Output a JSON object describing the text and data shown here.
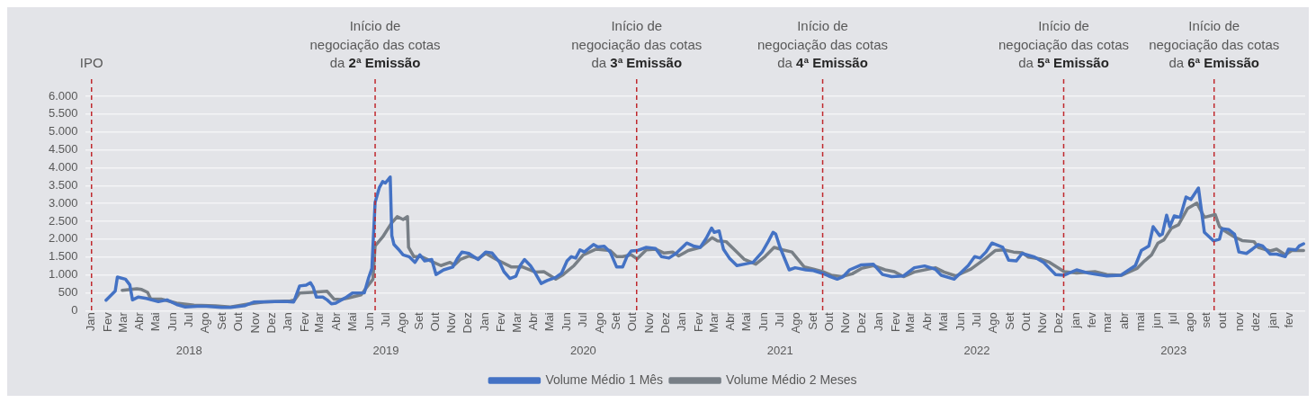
{
  "chart_data": {
    "type": "line",
    "legend": "bottom",
    "grid": "y",
    "xlim": [
      "2017-12-20",
      "2024-03-01"
    ],
    "ylim": [
      0,
      6000
    ],
    "yticks": [
      0,
      500,
      {
        "value": 1000,
        "label": "1.000"
      },
      {
        "value": 1500,
        "label": "1.500"
      },
      {
        "value": 2000,
        "label": "2.000"
      },
      {
        "value": 2500,
        "label": "2.500"
      },
      {
        "value": 3000,
        "label": "3.000"
      },
      {
        "value": 3500,
        "label": "3.500"
      },
      {
        "value": 4000,
        "label": "4.000"
      },
      {
        "value": 4500,
        "label": "4.500"
      },
      {
        "value": 5000,
        "label": "5.000"
      },
      {
        "value": 5500,
        "label": "5.500"
      },
      {
        "value": 6000,
        "label": "6.000"
      }
    ],
    "xticks": [
      {
        "value": "2018-01-01",
        "label": "Jan"
      },
      {
        "value": "2018-02-01",
        "label": "Fev"
      },
      {
        "value": "2018-03-01",
        "label": "Mar"
      },
      {
        "value": "2018-04-01",
        "label": "Abr"
      },
      {
        "value": "2018-05-01",
        "label": "Mai"
      },
      {
        "value": "2018-06-01",
        "label": "Jun"
      },
      {
        "value": "2018-07-01",
        "label": "Jul"
      },
      {
        "value": "2018-08-01",
        "label": "Ago"
      },
      {
        "value": "2018-09-01",
        "label": "Set"
      },
      {
        "value": "2018-10-01",
        "label": "Out"
      },
      {
        "value": "2018-11-01",
        "label": "Nov"
      },
      {
        "value": "2018-12-01",
        "label": "Dez"
      },
      {
        "value": "2019-01-01",
        "label": "Jan"
      },
      {
        "value": "2019-02-01",
        "label": "Fev"
      },
      {
        "value": "2019-03-01",
        "label": "Mar"
      },
      {
        "value": "2019-04-01",
        "label": "Abr"
      },
      {
        "value": "2019-05-01",
        "label": "Mai"
      },
      {
        "value": "2019-06-01",
        "label": "Jun"
      },
      {
        "value": "2019-07-01",
        "label": "Jul"
      },
      {
        "value": "2019-08-01",
        "label": "Ago"
      },
      {
        "value": "2019-09-01",
        "label": "Set"
      },
      {
        "value": "2019-10-01",
        "label": "Out"
      },
      {
        "value": "2019-11-01",
        "label": "Nov"
      },
      {
        "value": "2019-12-01",
        "label": "Dez"
      },
      {
        "value": "2020-01-01",
        "label": "Jan"
      },
      {
        "value": "2020-02-01",
        "label": "Fev"
      },
      {
        "value": "2020-03-01",
        "label": "Mar"
      },
      {
        "value": "2020-04-01",
        "label": "Abr"
      },
      {
        "value": "2020-05-01",
        "label": "Mai"
      },
      {
        "value": "2020-06-01",
        "label": "Jun"
      },
      {
        "value": "2020-07-01",
        "label": "Jul"
      },
      {
        "value": "2020-08-01",
        "label": "Ago"
      },
      {
        "value": "2020-09-01",
        "label": "Set"
      },
      {
        "value": "2020-10-01",
        "label": "Out"
      },
      {
        "value": "2020-11-01",
        "label": "Nov"
      },
      {
        "value": "2020-12-01",
        "label": "Dez"
      },
      {
        "value": "2021-01-01",
        "label": "Jan"
      },
      {
        "value": "2021-02-01",
        "label": "Fev"
      },
      {
        "value": "2021-03-01",
        "label": "Mar"
      },
      {
        "value": "2021-04-01",
        "label": "Abr"
      },
      {
        "value": "2021-05-01",
        "label": "Mai"
      },
      {
        "value": "2021-06-01",
        "label": "Jun"
      },
      {
        "value": "2021-07-01",
        "label": "Jul"
      },
      {
        "value": "2021-08-01",
        "label": "Ago"
      },
      {
        "value": "2021-09-01",
        "label": "Set"
      },
      {
        "value": "2021-10-01",
        "label": "Out"
      },
      {
        "value": "2021-11-01",
        "label": "Nov"
      },
      {
        "value": "2021-12-01",
        "label": "Dez"
      },
      {
        "value": "2022-01-01",
        "label": "Jan"
      },
      {
        "value": "2022-02-01",
        "label": "Fev"
      },
      {
        "value": "2022-03-01",
        "label": "Mar"
      },
      {
        "value": "2022-04-01",
        "label": "Abr"
      },
      {
        "value": "2022-05-01",
        "label": "Mai"
      },
      {
        "value": "2022-06-01",
        "label": "Jun"
      },
      {
        "value": "2022-07-01",
        "label": "Jul"
      },
      {
        "value": "2022-08-01",
        "label": "Ago"
      },
      {
        "value": "2022-09-01",
        "label": "Set"
      },
      {
        "value": "2022-10-01",
        "label": "Out"
      },
      {
        "value": "2022-11-01",
        "label": "Nov"
      },
      {
        "value": "2022-12-01",
        "label": "Dez"
      },
      {
        "value": "2023-01-01",
        "label": "jan"
      },
      {
        "value": "2023-02-01",
        "label": "fev"
      },
      {
        "value": "2023-03-01",
        "label": "mar"
      },
      {
        "value": "2023-04-01",
        "label": "abr"
      },
      {
        "value": "2023-05-01",
        "label": "mai"
      },
      {
        "value": "2023-06-01",
        "label": "jun"
      },
      {
        "value": "2023-07-01",
        "label": "jul"
      },
      {
        "value": "2023-08-01",
        "label": "ago"
      },
      {
        "value": "2023-09-01",
        "label": "set"
      },
      {
        "value": "2023-10-01",
        "label": "out"
      },
      {
        "value": "2023-11-01",
        "label": "nov"
      },
      {
        "value": "2023-12-01",
        "label": "dez"
      },
      {
        "value": "2024-01-01",
        "label": "jan"
      },
      {
        "value": "2024-02-01",
        "label": "fev"
      }
    ],
    "x2lim": [
      "2017-12-20",
      "2024-03-01"
    ],
    "x2ticks": [
      {
        "value": "2018-07-01",
        "label": "2018"
      },
      {
        "value": "2019-07-01",
        "label": "2019"
      },
      {
        "value": "2020-07-01",
        "label": "2020"
      },
      {
        "value": "2021-07-01",
        "label": "2021"
      },
      {
        "value": "2022-07-01",
        "label": "2022"
      },
      {
        "value": "2023-07-01",
        "label": "2023"
      }
    ],
    "ref_lines": [
      {
        "axis": "x",
        "value": "2018-01-01",
        "label": "IPO",
        "color": "#c0282d",
        "line_style": "dashed"
      },
      {
        "axis": "x",
        "value": "2019-06-11",
        "label": "Início de\nnegociação das cotas\nda 2ª Emissão",
        "color": "#c0282d",
        "line_style": "dashed"
      },
      {
        "axis": "x",
        "value": "2020-10-08",
        "label": "Início de\nnegociação das cotas\nda 3ª Emissão",
        "color": "#c0282d",
        "line_style": "dashed"
      },
      {
        "axis": "x",
        "value": "2021-09-18",
        "label": "Início de\nnegociação das cotas\nda 4ª Emissão",
        "color": "#c0282d",
        "line_style": "dashed"
      },
      {
        "axis": "x",
        "value": "2022-12-09",
        "label": "Início de\nnegociação das cotas\nda 5ª Emissão",
        "color": "#c0282d",
        "line_style": "dashed"
      },
      {
        "axis": "x",
        "value": "2023-09-14",
        "label": "Início de\nnegociação das cotas\nda 6ª Emissão",
        "color": "#c0282d",
        "line_style": "dashed"
      }
    ],
    "series": [
      {
        "name": "Volume Médio 1 Mês",
        "color": "#4472c4",
        "x": [
          "2018-01-28",
          "2018-02-14",
          "2018-02-18",
          "2018-03-05",
          "2018-03-13",
          "2018-03-18",
          "2018-03-29",
          "2018-04-13",
          "2018-05-05",
          "2018-05-21",
          "2018-06-08",
          "2018-06-24",
          "2018-07-16",
          "2018-08-02",
          "2018-08-30",
          "2018-09-16",
          "2018-10-13",
          "2018-10-30",
          "2018-12-08",
          "2018-12-30",
          "2019-01-11",
          "2019-01-22",
          "2019-02-03",
          "2019-02-11",
          "2019-02-16",
          "2019-02-22",
          "2019-03-06",
          "2019-03-14",
          "2019-03-22",
          "2019-03-30",
          "2019-04-19",
          "2019-04-30",
          "2019-05-22",
          "2019-05-30",
          "2019-06-05",
          "2019-06-11",
          "2019-06-19",
          "2019-06-25",
          "2019-06-30",
          "2019-07-05",
          "2019-07-09",
          "2019-07-12",
          "2019-07-16",
          "2019-07-24",
          "2019-08-02",
          "2019-08-13",
          "2019-08-24",
          "2019-09-02",
          "2019-09-11",
          "2019-09-24",
          "2019-10-02",
          "2019-10-16",
          "2019-11-02",
          "2019-11-11",
          "2019-11-19",
          "2019-12-02",
          "2019-12-19",
          "2020-01-02",
          "2020-01-14",
          "2020-01-28",
          "2020-02-05",
          "2020-02-16",
          "2020-02-27",
          "2020-03-06",
          "2020-03-14",
          "2020-03-25",
          "2020-04-03",
          "2020-04-14",
          "2020-04-25",
          "2020-05-11",
          "2020-05-22",
          "2020-06-01",
          "2020-06-09",
          "2020-06-17",
          "2020-06-25",
          "2020-07-03",
          "2020-07-20",
          "2020-07-28",
          "2020-08-09",
          "2020-08-20",
          "2020-09-01",
          "2020-09-12",
          "2020-09-20",
          "2020-09-28",
          "2020-10-09",
          "2020-10-26",
          "2020-11-12",
          "2020-11-23",
          "2020-12-07",
          "2020-12-20",
          "2021-01-09",
          "2021-01-23",
          "2021-02-03",
          "2021-02-14",
          "2021-02-24",
          "2021-03-01",
          "2021-03-10",
          "2021-03-18",
          "2021-03-29",
          "2021-04-12",
          "2021-04-26",
          "2021-05-12",
          "2021-05-29",
          "2021-06-09",
          "2021-06-18",
          "2021-06-23",
          "2021-07-01",
          "2021-07-18",
          "2021-07-29",
          "2021-08-18",
          "2021-09-01",
          "2021-09-18",
          "2021-09-29",
          "2021-10-15",
          "2021-10-26",
          "2021-11-07",
          "2021-11-29",
          "2021-12-21",
          "2022-01-07",
          "2022-01-24",
          "2022-02-15",
          "2022-03-07",
          "2022-03-26",
          "2022-04-15",
          "2022-04-26",
          "2022-05-20",
          "2022-06-15",
          "2022-06-27",
          "2022-07-07",
          "2022-07-18",
          "2022-07-29",
          "2022-08-18",
          "2022-08-29",
          "2022-09-12",
          "2022-09-23",
          "2022-10-16",
          "2022-11-02",
          "2022-11-24",
          "2022-12-10",
          "2023-01-02",
          "2023-01-24",
          "2023-02-27",
          "2023-03-25",
          "2023-04-21",
          "2023-05-02",
          "2023-05-16",
          "2023-05-24",
          "2023-06-05",
          "2023-06-10",
          "2023-06-18",
          "2023-06-24",
          "2023-07-02",
          "2023-07-13",
          "2023-07-24",
          "2023-08-02",
          "2023-08-16",
          "2023-08-27",
          "2023-09-13",
          "2023-09-24",
          "2023-09-29",
          "2023-10-11",
          "2023-10-22",
          "2023-10-30",
          "2023-11-13",
          "2023-11-24",
          "2023-12-05",
          "2023-12-13",
          "2023-12-27",
          "2024-01-08",
          "2024-01-24",
          "2024-01-30",
          "2024-02-13",
          "2024-02-19",
          "2024-02-27"
        ],
        "values": [
          290,
          550,
          940,
          880,
          720,
          300,
          380,
          340,
          250,
          300,
          170,
          100,
          120,
          120,
          90,
          90,
          140,
          240,
          250,
          250,
          240,
          690,
          710,
          780,
          660,
          380,
          380,
          300,
          190,
          210,
          380,
          490,
          500,
          920,
          1180,
          3030,
          3450,
          3610,
          3570,
          3660,
          3740,
          2100,
          1850,
          1720,
          1560,
          1510,
          1350,
          1560,
          1390,
          1430,
          1010,
          1140,
          1220,
          1470,
          1640,
          1600,
          1430,
          1640,
          1610,
          1350,
          1090,
          900,
          960,
          1260,
          1430,
          1260,
          1050,
          760,
          840,
          930,
          1050,
          1390,
          1510,
          1470,
          1700,
          1640,
          1850,
          1780,
          1800,
          1640,
          1220,
          1220,
          1510,
          1670,
          1680,
          1770,
          1740,
          1510,
          1470,
          1600,
          1890,
          1800,
          1770,
          2020,
          2310,
          2190,
          2230,
          1720,
          1470,
          1260,
          1300,
          1350,
          1640,
          1930,
          2190,
          2140,
          1770,
          1140,
          1200,
          1140,
          1120,
          1040,
          970,
          880,
          950,
          1140,
          1280,
          1300,
          1010,
          950,
          970,
          1200,
          1250,
          1160,
          990,
          880,
          1260,
          1510,
          1470,
          1640,
          1890,
          1770,
          1410,
          1390,
          1600,
          1500,
          1350,
          1010,
          990,
          1140,
          1050,
          970,
          990,
          1260,
          1680,
          1810,
          2350,
          2100,
          2140,
          2670,
          2350,
          2650,
          2610,
          3180,
          3110,
          3430,
          2190,
          1950,
          2000,
          2290,
          2270,
          2140,
          1640,
          1600,
          1720,
          1850,
          1810,
          1580,
          1580,
          1510,
          1720,
          1700,
          1810,
          1870
        ]
      },
      {
        "name": "Volume Médio 2 Meses",
        "color": "#787f86",
        "x": [
          "2018-02-27",
          "2018-03-26",
          "2018-04-04",
          "2018-04-15",
          "2018-04-21",
          "2018-05-10",
          "2018-06-08",
          "2018-07-10",
          "2018-08-19",
          "2018-09-16",
          "2018-10-13",
          "2018-11-16",
          "2019-01-05",
          "2019-01-13",
          "2019-01-22",
          "2019-02-13",
          "2019-03-14",
          "2019-03-27",
          "2019-04-08",
          "2019-04-24",
          "2019-05-16",
          "2019-05-27",
          "2019-06-07",
          "2019-06-11",
          "2019-06-25",
          "2019-07-11",
          "2019-07-22",
          "2019-08-02",
          "2019-08-10",
          "2019-08-12",
          "2019-08-22",
          "2019-09-05",
          "2019-09-22",
          "2019-10-11",
          "2019-10-28",
          "2019-11-05",
          "2019-11-16",
          "2019-12-02",
          "2019-12-19",
          "2020-01-02",
          "2020-01-22",
          "2020-02-19",
          "2020-03-11",
          "2020-04-03",
          "2020-04-19",
          "2020-05-11",
          "2020-05-25",
          "2020-06-14",
          "2020-07-01",
          "2020-07-25",
          "2020-08-20",
          "2020-09-01",
          "2020-09-12",
          "2020-09-28",
          "2020-10-09",
          "2020-10-26",
          "2020-11-12",
          "2020-11-28",
          "2020-12-14",
          "2020-12-25",
          "2021-01-12",
          "2021-02-03",
          "2021-02-25",
          "2021-03-07",
          "2021-03-23",
          "2021-04-09",
          "2021-04-26",
          "2021-05-17",
          "2021-06-03",
          "2021-06-20",
          "2021-07-06",
          "2021-07-23",
          "2021-08-15",
          "2021-09-01",
          "2021-09-18",
          "2021-10-04",
          "2021-10-23",
          "2021-11-12",
          "2021-11-29",
          "2021-12-21",
          "2022-01-12",
          "2022-01-29",
          "2022-02-15",
          "2022-03-07",
          "2022-04-15",
          "2022-05-01",
          "2022-05-23",
          "2022-06-20",
          "2022-07-18",
          "2022-08-04",
          "2022-08-20",
          "2022-09-07",
          "2022-09-23",
          "2022-10-04",
          "2022-10-26",
          "2022-11-13",
          "2022-12-10",
          "2023-01-02",
          "2023-02-05",
          "2023-02-27",
          "2023-03-27",
          "2023-04-24",
          "2023-05-08",
          "2023-05-21",
          "2023-06-02",
          "2023-06-13",
          "2023-06-27",
          "2023-07-10",
          "2023-07-27",
          "2023-08-13",
          "2023-08-27",
          "2023-09-16",
          "2023-09-24",
          "2023-10-02",
          "2023-10-22",
          "2023-11-05",
          "2023-11-27",
          "2023-12-05",
          "2023-12-27",
          "2024-01-08",
          "2024-01-24",
          "2024-02-05",
          "2024-02-27"
        ],
        "values": [
          570,
          610,
          590,
          510,
          320,
          320,
          210,
          150,
          130,
          100,
          170,
          240,
          270,
          300,
          490,
          510,
          540,
          320,
          310,
          360,
          440,
          660,
          880,
          1810,
          2060,
          2440,
          2630,
          2550,
          2630,
          1770,
          1510,
          1510,
          1390,
          1260,
          1350,
          1280,
          1430,
          1530,
          1450,
          1600,
          1430,
          1220,
          1220,
          1080,
          1090,
          880,
          1010,
          1260,
          1560,
          1720,
          1680,
          1510,
          1510,
          1560,
          1450,
          1700,
          1720,
          1610,
          1640,
          1530,
          1680,
          1770,
          2040,
          1950,
          1930,
          1680,
          1430,
          1300,
          1510,
          1770,
          1700,
          1640,
          1220,
          1160,
          1090,
          990,
          950,
          1030,
          1180,
          1260,
          1140,
          1090,
          950,
          1080,
          1200,
          1080,
          970,
          1160,
          1470,
          1680,
          1700,
          1640,
          1620,
          1500,
          1450,
          1350,
          1090,
          1050,
          1090,
          1010,
          990,
          1180,
          1390,
          1560,
          1890,
          1980,
          2310,
          2400,
          2860,
          3010,
          2610,
          2690,
          2350,
          2250,
          2060,
          1960,
          1930,
          1770,
          1670,
          1720,
          1560,
          1680,
          1680
        ]
      }
    ]
  }
}
